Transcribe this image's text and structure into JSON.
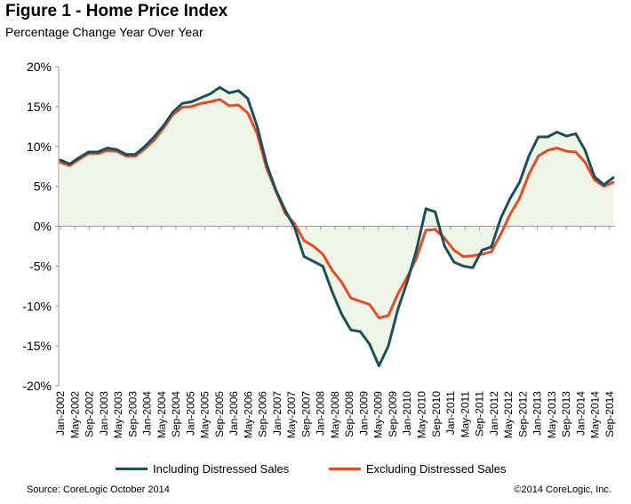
{
  "title": "Figure 1 - Home Price Index",
  "subtitle": "Percentage Change Year Over Year",
  "footer": {
    "source": "Source: CoreLogic  October 2014",
    "copyright": "©2014 CoreLogic, Inc."
  },
  "chart_data": {
    "type": "line",
    "ylim": [
      -20,
      20
    ],
    "yticks": [
      "20%",
      "15%",
      "10%",
      "5%",
      "0%",
      "-5%",
      "-10%",
      "-15%",
      "-20%"
    ],
    "ytick_values": [
      20,
      15,
      10,
      5,
      0,
      -5,
      -10,
      -15,
      -20
    ],
    "xtick_labels": [
      "Jan-2002",
      "May-2002",
      "Sep-2002",
      "Jan-2003",
      "May-2003",
      "Sep-2003",
      "Jan-2004",
      "May-2004",
      "Sep-2004",
      "Jan-2005",
      "May-2005",
      "Sep-2005",
      "Jan-2006",
      "May-2006",
      "Sep-2006",
      "Jan-2007",
      "May-2007",
      "Sep-2007",
      "Jan-2008",
      "May-2008",
      "Sep-2008",
      "Jan-2009",
      "May-2009",
      "Sep-2009",
      "Jan-2010",
      "May-2010",
      "Sep-2010",
      "Jan-2011",
      "May-2011",
      "Sep-2011",
      "Jan-2012",
      "May-2012",
      "Sep-2012",
      "Jan-2013",
      "May-2013",
      "Sep-2013",
      "Jan-2014",
      "May-2014",
      "Sep-2014"
    ],
    "fill_between_series": true,
    "colors": {
      "including": "#1b4f5a",
      "excluding": "#e84a27",
      "fill": "#eef4e6",
      "axis": "#999999"
    },
    "series": [
      {
        "name": "Including Distressed Sales",
        "values": [
          8.3,
          7.8,
          8.6,
          9.3,
          9.3,
          9.8,
          9.6,
          9.0,
          9.0,
          10.0,
          11.2,
          12.6,
          14.3,
          15.4,
          15.6,
          16.1,
          16.6,
          17.4,
          16.7,
          17.0,
          16.0,
          12.5,
          7.8,
          4.5,
          2.0,
          -0.2,
          -3.8,
          -4.4,
          -5.0,
          -8.2,
          -11.0,
          -13.0,
          -13.2,
          -14.8,
          -17.5,
          -15.0,
          -10.5,
          -7.0,
          -3.0,
          2.2,
          1.8,
          -2.5,
          -4.5,
          -5.0,
          -5.2,
          -3.0,
          -2.6,
          1.0,
          3.5,
          5.5,
          8.8,
          11.2,
          11.2,
          11.8,
          11.3,
          11.6,
          9.5,
          6.2,
          5.2,
          6.1
        ]
      },
      {
        "name": "Excluding Distressed Sales",
        "values": [
          8.0,
          7.6,
          8.4,
          9.1,
          9.1,
          9.5,
          9.4,
          8.8,
          8.8,
          9.7,
          10.8,
          12.3,
          14.0,
          14.9,
          15.0,
          15.4,
          15.6,
          15.9,
          15.1,
          15.2,
          14.2,
          11.6,
          7.3,
          4.4,
          1.6,
          0.3,
          -1.8,
          -2.5,
          -3.5,
          -5.5,
          -7.0,
          -9.0,
          -9.4,
          -9.8,
          -11.5,
          -11.2,
          -8.5,
          -6.4,
          -4.0,
          -0.5,
          -0.4,
          -1.5,
          -3.0,
          -3.8,
          -3.7,
          -3.5,
          -3.2,
          -1.0,
          1.5,
          3.5,
          6.5,
          8.8,
          9.5,
          9.8,
          9.4,
          9.3,
          8.0,
          5.8,
          5.0,
          5.5
        ]
      }
    ]
  }
}
